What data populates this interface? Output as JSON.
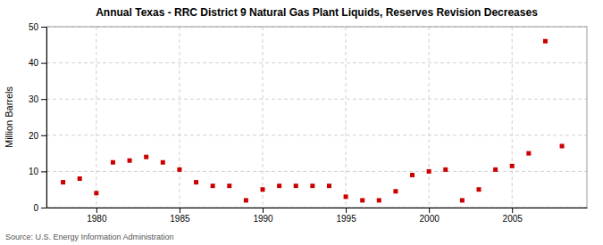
{
  "chart_data": {
    "type": "scatter",
    "title": "Annual Texas - RRC District 9 Natural Gas Plant Liquids, Reserves Revision Decreases",
    "ylabel": "Million Barrels",
    "annotations": [
      "Source: U.S. Energy Information Administration"
    ],
    "x": [
      1978,
      1979,
      1980,
      1981,
      1982,
      1983,
      1984,
      1985,
      1986,
      1987,
      1988,
      1989,
      1990,
      1991,
      1992,
      1993,
      1994,
      1995,
      1996,
      1997,
      1998,
      1999,
      2000,
      2001,
      2002,
      2003,
      2004,
      2005,
      2006,
      2007,
      2008
    ],
    "values": [
      7.0,
      8.0,
      4.0,
      12.5,
      13.0,
      14.0,
      12.5,
      10.5,
      7.0,
      6.0,
      6.0,
      2.0,
      5.0,
      6.0,
      6.0,
      6.0,
      6.0,
      3.0,
      2.0,
      2.0,
      4.5,
      9.0,
      10.0,
      10.5,
      2.0,
      5.0,
      10.5,
      11.5,
      15.0,
      46.0,
      17.0
    ],
    "color": "#cc0000",
    "marker": "square",
    "xlim": [
      1977.0,
      2009.5
    ],
    "xticks": [
      1980,
      1985,
      1990,
      1995,
      2000,
      2005
    ],
    "ylim": [
      0,
      50
    ],
    "yticks": [
      0,
      10,
      20,
      30,
      40,
      50
    ],
    "grid": true
  }
}
